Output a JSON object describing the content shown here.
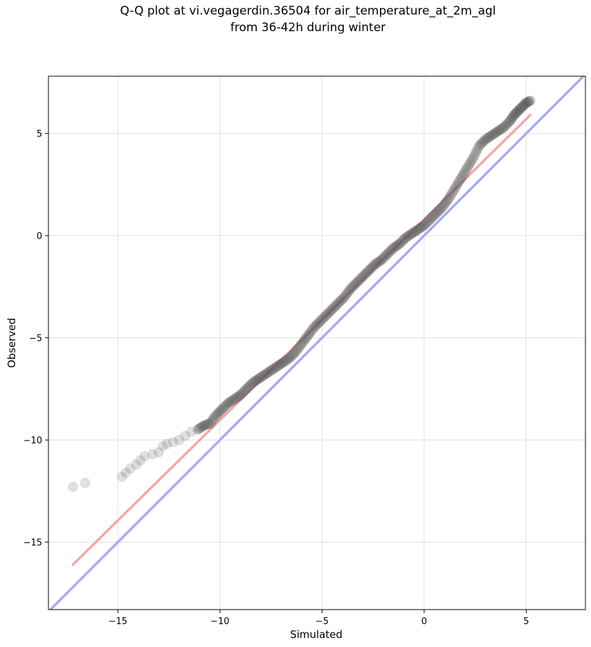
{
  "chart_data": {
    "type": "scatter",
    "title": "Q-Q plot at vi.vegagerdin.36504 for air_temperature_at_2m_agl",
    "subtitle": "from 36-42h during winter",
    "xlabel": "Simulated",
    "ylabel": "Observed",
    "xlim": [
      -18.4,
      7.9
    ],
    "ylim": [
      -18.3,
      7.8
    ],
    "xticks": [
      -15,
      -10,
      -5,
      0,
      5
    ],
    "yticks": [
      -15,
      -10,
      -5,
      0,
      5
    ],
    "xtick_labels": [
      "−15",
      "−10",
      "−5",
      "0",
      "5"
    ],
    "ytick_labels": [
      "−15",
      "−10",
      "−5",
      "0",
      "5"
    ],
    "grid": true,
    "series": [
      {
        "kind": "quantile-points",
        "color": "#555555",
        "x": [
          -17.2,
          -16.6,
          -14.8,
          -14.6,
          -14.4,
          -14.1,
          -13.9,
          -13.7,
          -13.3,
          -13.0,
          -12.8,
          -12.6,
          -12.3,
          -12.0,
          -11.7,
          -11.4,
          -11.1,
          -10.8,
          -10.5,
          -10.2,
          -9.9,
          -9.6,
          -9.3,
          -9.0,
          -8.7,
          -8.4,
          -8.1,
          -7.8,
          -7.5,
          -7.2,
          -6.9,
          -6.6,
          -6.3,
          -6.0,
          -5.7,
          -5.4,
          -5.1,
          -4.8,
          -4.5,
          -4.2,
          -3.9,
          -3.6,
          -3.3,
          -3.0,
          -2.7,
          -2.4,
          -2.1,
          -1.8,
          -1.5,
          -1.2,
          -0.9,
          -0.6,
          -0.3,
          0.0,
          0.3,
          0.6,
          0.9,
          1.2,
          1.5,
          1.8,
          2.1,
          2.4,
          2.7,
          3.0,
          3.3,
          3.6,
          3.9,
          4.2,
          4.4,
          4.6,
          4.8,
          5.0,
          5.2
        ],
        "y": [
          -12.3,
          -12.1,
          -11.8,
          -11.6,
          -11.4,
          -11.2,
          -11.0,
          -10.8,
          -10.7,
          -10.6,
          -10.3,
          -10.2,
          -10.1,
          -10.0,
          -9.8,
          -9.6,
          -9.5,
          -9.3,
          -9.2,
          -8.8,
          -8.5,
          -8.2,
          -8.0,
          -7.8,
          -7.5,
          -7.2,
          -7.0,
          -6.8,
          -6.6,
          -6.4,
          -6.2,
          -6.0,
          -5.7,
          -5.3,
          -4.9,
          -4.5,
          -4.2,
          -3.9,
          -3.6,
          -3.3,
          -3.0,
          -2.6,
          -2.3,
          -2.0,
          -1.7,
          -1.4,
          -1.2,
          -0.9,
          -0.6,
          -0.4,
          -0.1,
          0.1,
          0.3,
          0.5,
          0.8,
          1.1,
          1.4,
          1.8,
          2.3,
          2.8,
          3.3,
          3.8,
          4.4,
          4.7,
          4.9,
          5.1,
          5.3,
          5.6,
          5.9,
          6.1,
          6.3,
          6.5,
          6.6
        ]
      },
      {
        "kind": "fit-line",
        "color": "#f4a6a6",
        "x": [
          -17.2,
          5.2
        ],
        "y": [
          -16.1,
          5.9
        ]
      },
      {
        "kind": "identity-line",
        "color": "#a8a8f4",
        "x": [
          -18.4,
          7.9
        ],
        "y": [
          -18.4,
          7.9
        ]
      }
    ]
  }
}
